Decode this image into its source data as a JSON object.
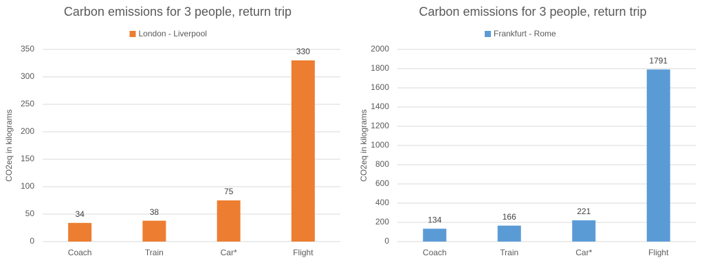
{
  "chart_data": [
    {
      "type": "bar",
      "title": "Carbon emissions for 3 people, return trip",
      "y_label": "CO2eq in kilograms",
      "categories": [
        "Coach",
        "Train",
        "Car*",
        "Flight"
      ],
      "series": [
        {
          "name": "London - Liverpool",
          "color": "#ed7d31",
          "values": [
            34,
            38,
            75,
            330
          ]
        }
      ],
      "ylim": [
        0,
        350
      ],
      "yticks": [
        0,
        50,
        100,
        150,
        200,
        250,
        300,
        350
      ],
      "grid": true
    },
    {
      "type": "bar",
      "title": "Carbon emissions for 3 people, return trip",
      "y_label": "CO2eq in kilograms",
      "categories": [
        "Coach",
        "Train",
        "Car*",
        "Flight"
      ],
      "series": [
        {
          "name": "Frankfurt - Rome",
          "color": "#5b9bd5",
          "values": [
            134,
            166,
            221,
            1791
          ]
        }
      ],
      "ylim": [
        0,
        2000
      ],
      "yticks": [
        0,
        200,
        400,
        600,
        800,
        1000,
        1200,
        1400,
        1600,
        1800,
        2000
      ],
      "grid": true
    }
  ]
}
